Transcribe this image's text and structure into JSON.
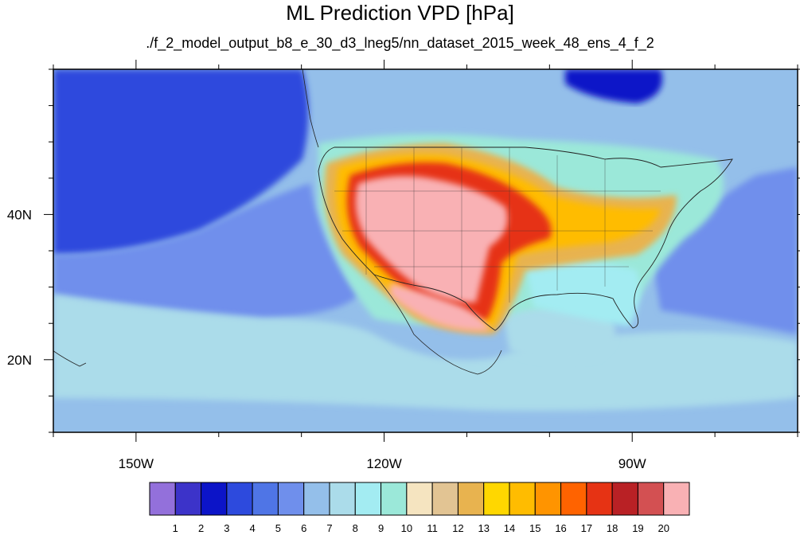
{
  "title": "ML Prediction VPD [hPa]",
  "subtitle": "./f_2_model_output_b8_e_30_d3_lneg5/nn_dataset_2015_week_48_ens_4_f_2",
  "chart_data": {
    "type": "heatmap",
    "title": "ML Prediction VPD [hPa]",
    "subtitle": "./f_2_model_output_b8_e_30_d3_lneg5/nn_dataset_2015_week_48_ens_4_f_2",
    "projection": "cylindrical-equidistant",
    "lon_range": [
      -160,
      -70
    ],
    "lat_range": [
      10,
      60
    ],
    "x_ticks": [
      {
        "lon": -150,
        "label": "150W"
      },
      {
        "lon": -120,
        "label": "120W"
      },
      {
        "lon": -90,
        "label": "90W"
      }
    ],
    "y_ticks": [
      {
        "lat": 40,
        "label": "40N"
      },
      {
        "lat": 20,
        "label": "20N"
      }
    ],
    "colorbar": {
      "labels": [
        "1",
        "2",
        "3",
        "4",
        "5",
        "6",
        "7",
        "8",
        "9",
        "10",
        "11",
        "12",
        "13",
        "14",
        "15",
        "16",
        "17",
        "18",
        "19",
        "20"
      ],
      "colors": [
        "#9370db",
        "#3c33c9",
        "#0c14c8",
        "#2d4add",
        "#4f75e6",
        "#6f8fec",
        "#94bfea",
        "#abdcea",
        "#a3ecf2",
        "#9be8d9",
        "#f5e4c0",
        "#e2c493",
        "#e8b34f",
        "#ffd700",
        "#ffbc00",
        "#ff9400",
        "#ff6300",
        "#e63314",
        "#b92125",
        "#d35052",
        "#f9b1b4"
      ]
    },
    "regions": [
      {
        "name": "ocean-background",
        "level": 6
      },
      {
        "name": "northwest-pacific-low",
        "level": 3
      },
      {
        "name": "eastern-pacific-band",
        "level": 5
      },
      {
        "name": "subtropical-pacific",
        "level": 7
      },
      {
        "name": "gulf-of-mexico",
        "level": 7
      },
      {
        "name": "atlantic-coastal",
        "level": 5
      },
      {
        "name": "hudson-bay-north",
        "level": 2
      },
      {
        "name": "eastern-us-moderate",
        "level": 9
      },
      {
        "name": "southeast-us",
        "level": 8
      },
      {
        "name": "us-interior-edge",
        "level": 12
      },
      {
        "name": "us-interior-dry",
        "level": 14
      },
      {
        "name": "plains-core",
        "level": 17
      },
      {
        "name": "great-basin-southwest",
        "level": 20
      },
      {
        "name": "mexico-desert",
        "level": 20
      }
    ]
  }
}
